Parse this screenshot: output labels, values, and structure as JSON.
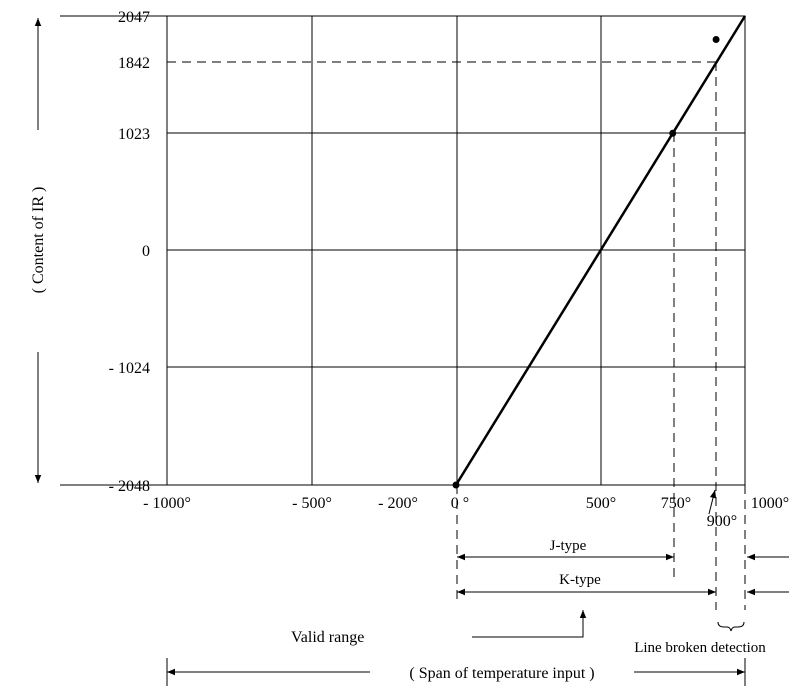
{
  "chart_data": {
    "type": "line",
    "title": "",
    "xlabel": "( Span of temperature input )",
    "ylabel": "( Content  of  IR )",
    "x_ticks": [
      "- 1000°",
      "- 500°",
      "- 200°",
      "0 °",
      "500°",
      "750°",
      "900°",
      "1000°"
    ],
    "y_ticks": [
      "2047",
      "1842",
      "1023",
      "0",
      "- 1024",
      "- 2048"
    ],
    "xlim": [
      -1000,
      1000
    ],
    "ylim": [
      -2048,
      2047
    ],
    "series": [
      {
        "x": [
          0,
          1000
        ],
        "y": [
          -2048,
          2047
        ]
      }
    ],
    "marked_points": [
      {
        "x": 0,
        "y": -2048
      },
      {
        "x": 750,
        "y": 1023
      },
      {
        "x": 900,
        "y": 1842
      }
    ],
    "grid": true,
    "annotations": {
      "j_type": "J-type",
      "k_type": "K-type",
      "valid_range": "Valid range",
      "line_broken": "Line broken detection"
    }
  }
}
